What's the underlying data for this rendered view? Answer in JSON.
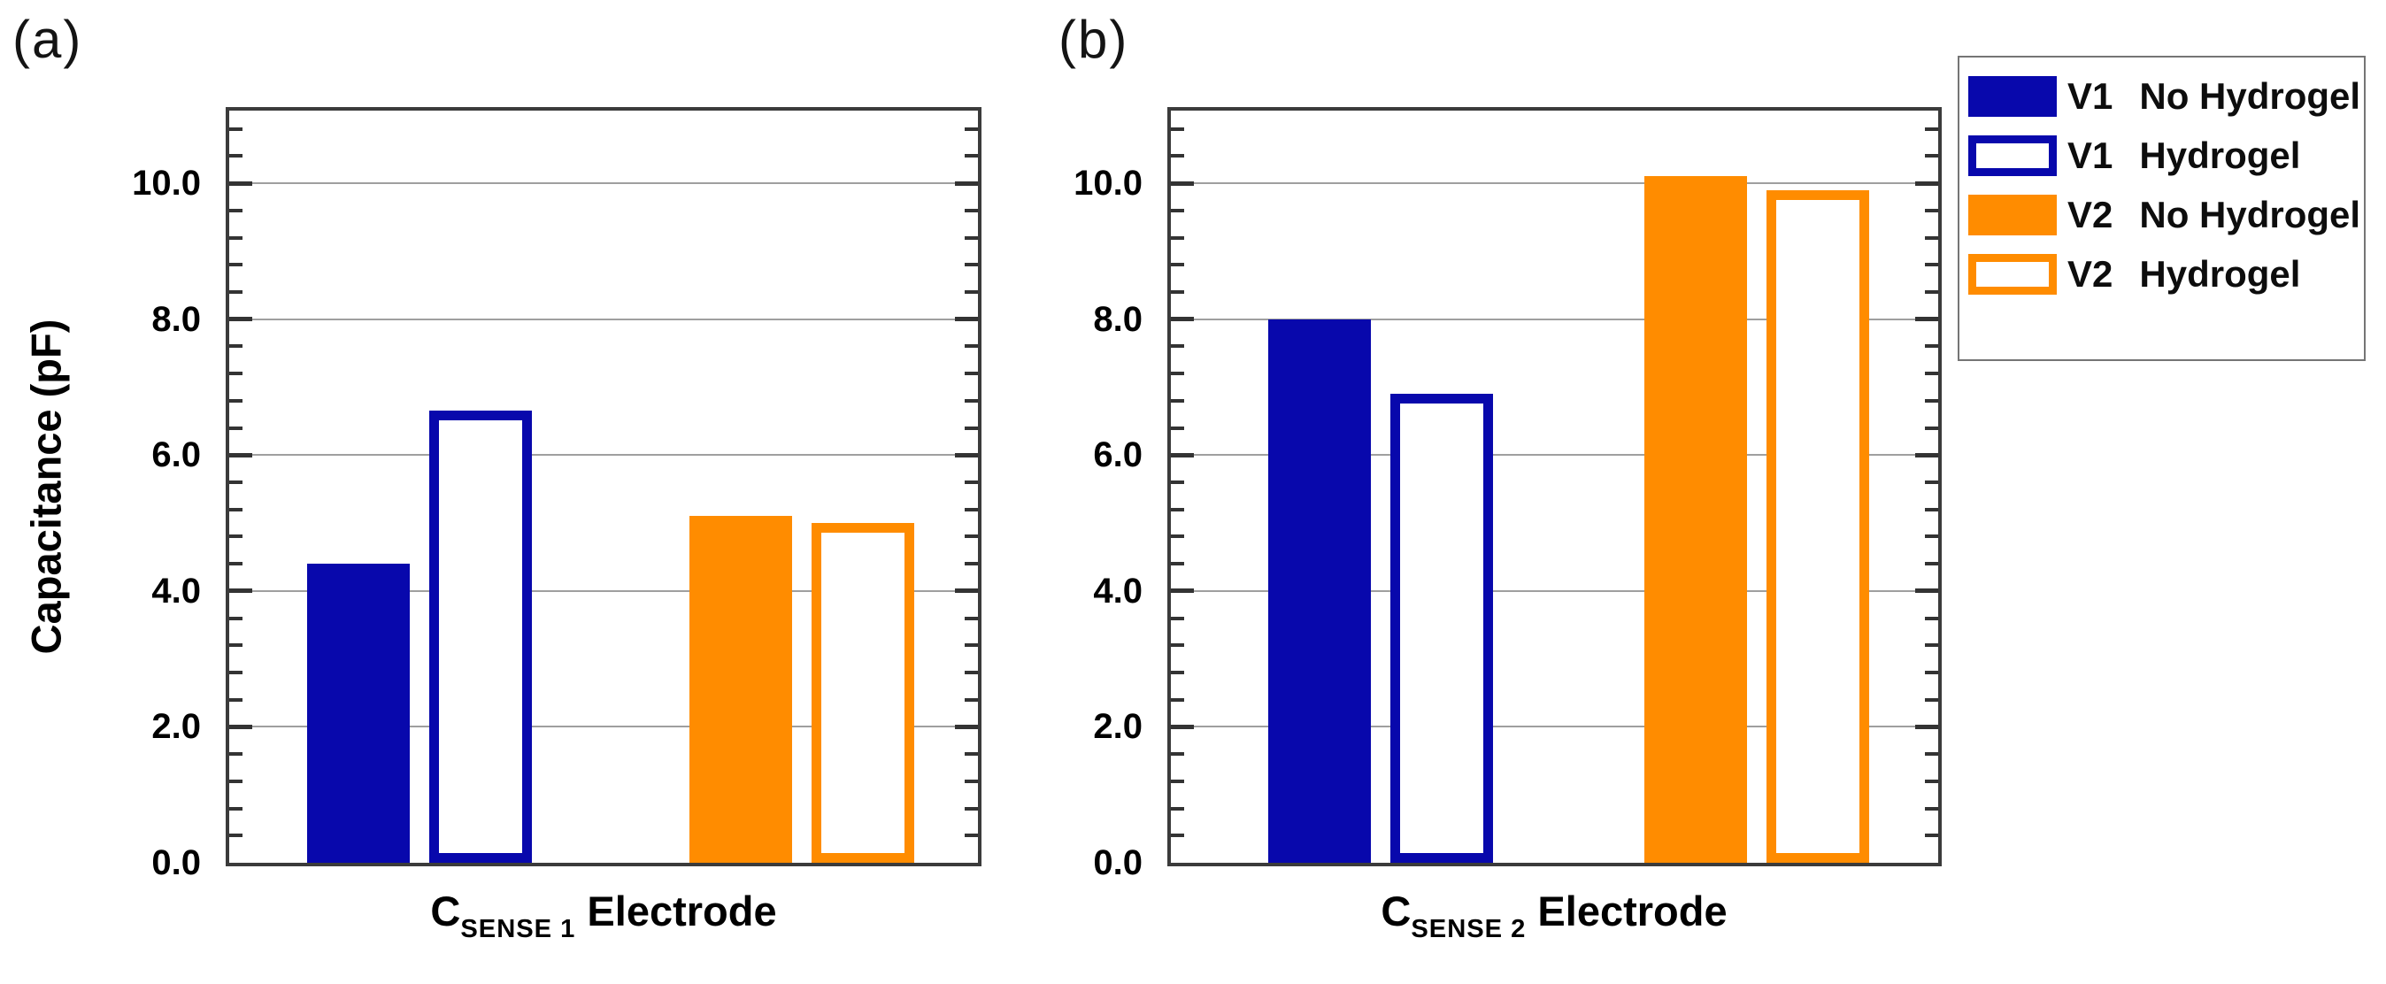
{
  "figure": {
    "ylabel": "Capacitance (pF)",
    "ytick_labels": [
      {
        "value": 10,
        "label": "10.0"
      },
      {
        "value": 8,
        "label": "8.0"
      },
      {
        "value": 6,
        "label": "6.0"
      },
      {
        "value": 4,
        "label": "4.0"
      },
      {
        "value": 2,
        "label": "2.0"
      },
      {
        "value": 0,
        "label": "0.0"
      }
    ],
    "gridline_values": [
      2,
      4,
      6,
      8,
      10
    ],
    "panels": [
      {
        "tag": "(a)",
        "xlabel": {
          "main": "C",
          "sub": "SENSE 1",
          "rest": " Electrode"
        }
      },
      {
        "tag": "(b)",
        "xlabel": {
          "main": "C",
          "sub": "SENSE 2",
          "rest": " Electrode"
        }
      }
    ],
    "series_styles": [
      {
        "name": "V1 No Hydrogel",
        "style": "solid",
        "color": "#0808AC"
      },
      {
        "name": "V1 Hydrogel",
        "style": "outline",
        "color": "#0808AC"
      },
      {
        "name": "V2 No Hydrogel",
        "style": "solid",
        "color": "#FF8C00"
      },
      {
        "name": "V2 Hydrogel",
        "style": "outline",
        "color": "#FF8C00"
      }
    ]
  },
  "legend": {
    "entries": [
      {
        "v": "V1",
        "rest": "No Hydrogel",
        "style": "solid",
        "color": "#0808AC"
      },
      {
        "v": "V1",
        "rest": "Hydrogel",
        "style": "outline",
        "color": "#0808AC"
      },
      {
        "v": "V2",
        "rest": "No Hydrogel",
        "style": "solid",
        "color": "#FF8C00"
      },
      {
        "v": "V2",
        "rest": "Hydrogel",
        "style": "outline",
        "color": "#FF8C00"
      }
    ]
  },
  "chart_data": [
    {
      "type": "bar",
      "title": "(a)",
      "categories": [
        "V1 No Hydrogel",
        "V1 Hydrogel",
        "V2 No Hydrogel",
        "V2 Hydrogel"
      ],
      "values": [
        4.4,
        6.65,
        5.1,
        5.0
      ],
      "bar_colors": [
        "#0808AC",
        "#0808AC",
        "#FF8C00",
        "#FF8C00"
      ],
      "bar_fills": [
        "solid",
        "outline",
        "solid",
        "outline"
      ],
      "xlabel": "C_SENSE 1 Electrode",
      "ylabel": "Capacitance (pF)",
      "ylim": [
        0,
        11.1
      ],
      "yticks": [
        0,
        2,
        4,
        6,
        8,
        10
      ],
      "minor_tick_step": 0.4,
      "grid": true,
      "legend_position": "outside-top-right"
    },
    {
      "type": "bar",
      "title": "(b)",
      "categories": [
        "V1 No Hydrogel",
        "V1 Hydrogel",
        "V2 No Hydrogel",
        "V2 Hydrogel"
      ],
      "values": [
        8.0,
        6.9,
        10.1,
        9.9
      ],
      "bar_colors": [
        "#0808AC",
        "#0808AC",
        "#FF8C00",
        "#FF8C00"
      ],
      "bar_fills": [
        "solid",
        "outline",
        "solid",
        "outline"
      ],
      "xlabel": "C_SENSE 2 Electrode",
      "ylabel": "",
      "ylim": [
        0,
        11.1
      ],
      "yticks": [
        0,
        2,
        4,
        6,
        8,
        10
      ],
      "minor_tick_step": 0.4,
      "grid": true,
      "legend_position": "outside-top-right"
    }
  ]
}
